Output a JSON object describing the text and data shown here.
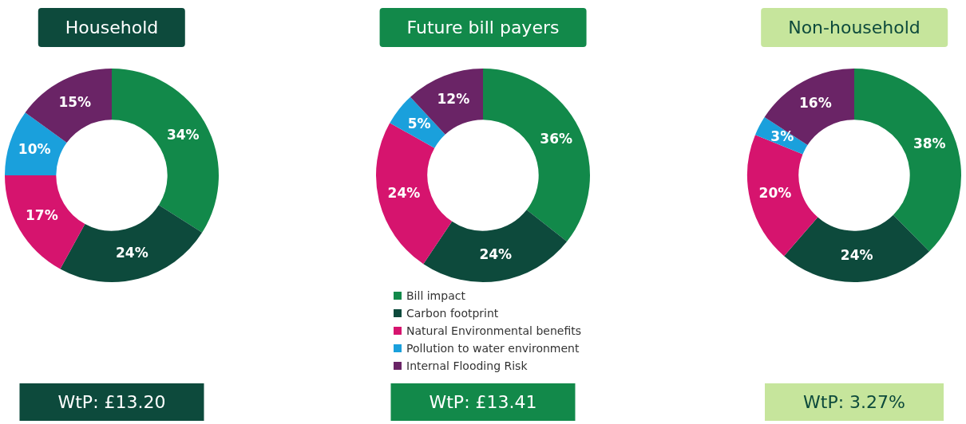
{
  "chart_data": [
    {
      "type": "donut",
      "title": "Household",
      "categories": [
        null,
        null,
        null,
        null,
        null
      ],
      "values": [
        34,
        24,
        17,
        10,
        15
      ],
      "value_labels": [
        "34%",
        "24%",
        "17%",
        "10%",
        "15%"
      ],
      "colors": [
        "#12894a",
        "#0d4a3c",
        "#d6146e",
        "#1aa0dc",
        "#6a2466"
      ],
      "legend": false,
      "annotations": [
        "WtP: £13.20"
      ]
    },
    {
      "type": "donut",
      "title": "Future bill payers",
      "categories": [
        "Bill impact",
        "Carbon footprint",
        "Natural Environmental benefits",
        "Pollution to water environment",
        "Internal Flooding Risk"
      ],
      "values": [
        36,
        24,
        24,
        5,
        12
      ],
      "value_labels": [
        "36%",
        "24%",
        "24%",
        "5%",
        "12%"
      ],
      "colors": [
        "#12894a",
        "#0d4a3c",
        "#d6146e",
        "#1aa0dc",
        "#6a2466"
      ],
      "legend": "bottom",
      "annotations": [
        "WtP: £13.41"
      ]
    },
    {
      "type": "donut",
      "title": "Non-household",
      "categories": [
        null,
        null,
        null,
        null,
        null
      ],
      "values": [
        38,
        24,
        20,
        3,
        16
      ],
      "value_labels": [
        "38%",
        "24%",
        "20%",
        "3%",
        "16%"
      ],
      "colors": [
        "#12894a",
        "#0d4a3c",
        "#d6146e",
        "#1aa0dc",
        "#6a2466"
      ],
      "legend": false,
      "annotations": [
        "WtP: 3.27%"
      ]
    }
  ]
}
